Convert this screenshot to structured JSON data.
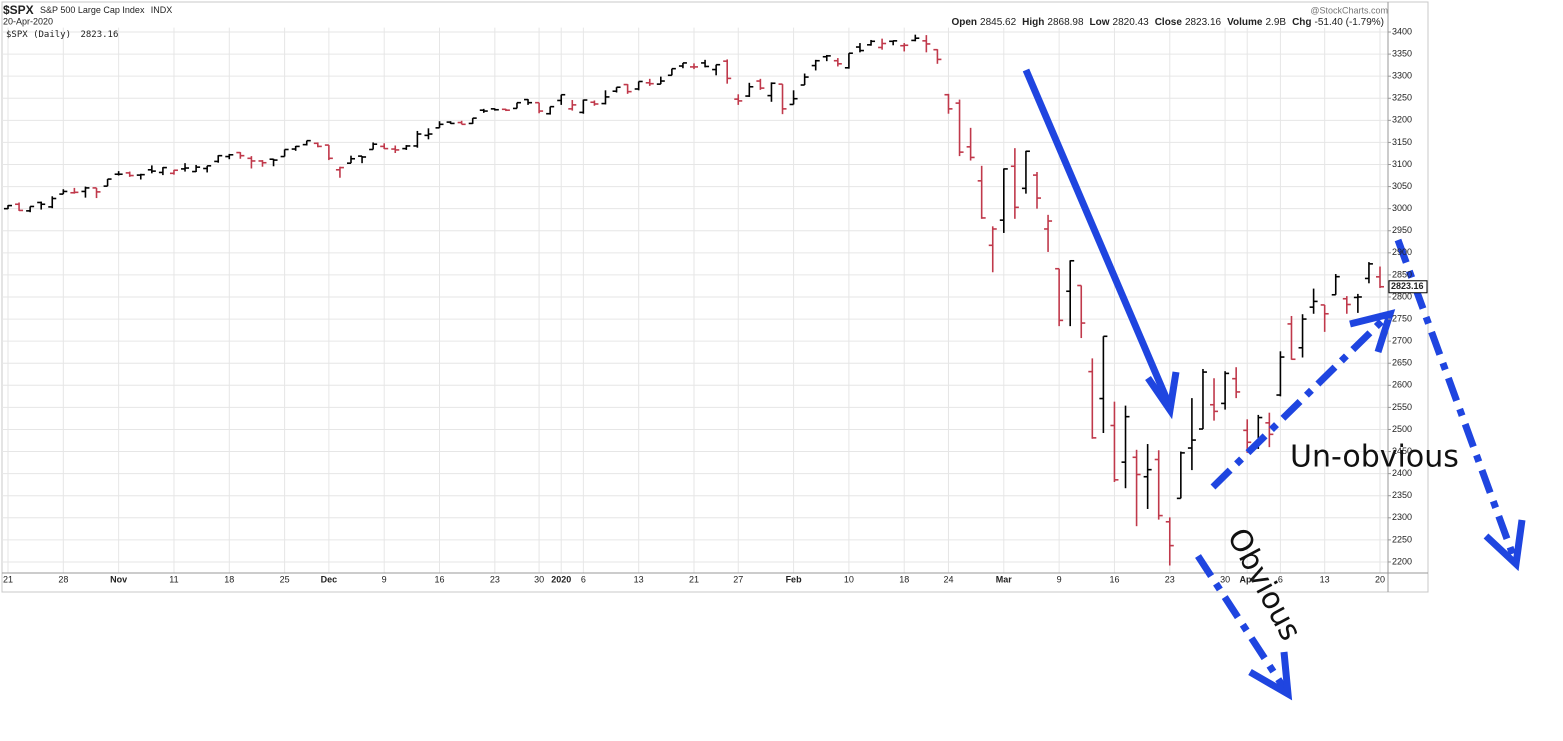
{
  "chart_data": {
    "type": "ohlc",
    "title": "$SPX",
    "subtitle": "S&P 500 Large Cap Index",
    "exchange": "INDX",
    "date": "20-Apr-2020",
    "legend_label": "$SPX (Daily)",
    "source": "@StockCharts.com",
    "volume": {
      "label": "Volume",
      "value": "2.9B"
    },
    "change": {
      "label": "Chg",
      "value": "-51.40 (-1.79%)"
    },
    "annotations": [
      "Obvious",
      "Un-obvious"
    ],
    "up_color": "#000000",
    "down_color": "#c0394b",
    "grid": true,
    "ylim": [
      2175,
      3410
    ],
    "yticks": [
      2200,
      2250,
      2300,
      2350,
      2400,
      2450,
      2500,
      2550,
      2600,
      2650,
      2700,
      2750,
      2800,
      2850,
      2900,
      2950,
      3000,
      3050,
      3100,
      3150,
      3200,
      3250,
      3300,
      3350,
      3400
    ],
    "categories": [
      "21",
      null,
      null,
      null,
      null,
      "28",
      null,
      null,
      null,
      null,
      "Nov",
      null,
      null,
      null,
      null,
      "11",
      null,
      null,
      null,
      null,
      "18",
      null,
      null,
      null,
      null,
      "25",
      null,
      null,
      null,
      "Dec",
      null,
      null,
      null,
      null,
      "9",
      null,
      null,
      null,
      null,
      "16",
      null,
      null,
      null,
      null,
      "23",
      null,
      null,
      null,
      "30",
      null,
      "2020",
      null,
      "6",
      null,
      null,
      null,
      null,
      "13",
      null,
      null,
      null,
      null,
      "21",
      null,
      null,
      null,
      "27",
      null,
      null,
      null,
      null,
      "Feb",
      null,
      null,
      null,
      null,
      "10",
      null,
      null,
      null,
      null,
      "18",
      null,
      null,
      null,
      "24",
      null,
      null,
      null,
      null,
      "Mar",
      null,
      null,
      null,
      null,
      "9",
      null,
      null,
      null,
      null,
      "16",
      null,
      null,
      null,
      null,
      "23",
      null,
      null,
      null,
      null,
      "30",
      null,
      "Apr",
      null,
      null,
      "6",
      null,
      null,
      null,
      "13",
      null,
      null,
      null,
      null,
      "20"
    ],
    "series": [
      {
        "name": "Open",
        "values": [
          3000,
          3010,
          2995,
          3014,
          3004,
          3033,
          3036,
          3039,
          3047,
          3051,
          3078,
          3081,
          3076,
          3088,
          3082,
          3080,
          3090,
          3084,
          3091,
          3107,
          3118,
          3127,
          3114,
          3108,
          3112,
          3118,
          3135,
          3145,
          3148,
          3144,
          3088,
          3103,
          3119,
          3134,
          3141,
          3135,
          3136,
          3142,
          3166,
          3183,
          3196,
          3195,
          3193,
          3223,
          3226,
          3225,
          3227,
          3247,
          3240,
          3215,
          3245,
          3226,
          3218,
          3241,
          3238,
          3266,
          3281,
          3271,
          3285,
          3282,
          3302,
          3323,
          3321,
          3330,
          3315,
          3334,
          3248,
          3255,
          3289,
          3256,
          3282,
          3236,
          3280,
          3324,
          3344,
          3335,
          3319,
          3366,
          3371,
          3365,
          3379,
          3369,
          3381,
          3380,
          3360,
          3258,
          3239,
          3140,
          3063,
          2917,
          2974,
          3096,
          3046,
          3076,
          2954,
          2864,
          2813,
          2826,
          2631,
          2570,
          2509,
          2426,
          2437,
          2393,
          2432,
          2291,
          2344,
          2458,
          2501,
          2556,
          2559,
          2615,
          2498,
          2459,
          2515,
          2578,
          2739,
          2685,
          2777,
          2782,
          2805,
          2796,
          2799,
          2842,
          2845.62
        ]
      },
      {
        "name": "High",
        "values": [
          3008,
          3014,
          3005,
          3016,
          3028,
          3044,
          3047,
          3050,
          3047,
          3067,
          3085,
          3084,
          3079,
          3098,
          3094,
          3088,
          3103,
          3099,
          3097,
          3121,
          3124,
          3128,
          3119,
          3110,
          3113,
          3134,
          3142,
          3154,
          3150,
          3144,
          3095,
          3120,
          3119,
          3150,
          3148,
          3143,
          3144,
          3176,
          3182,
          3198,
          3198,
          3199,
          3205,
          3226,
          3227,
          3226,
          3240,
          3248,
          3240,
          3231,
          3258,
          3246,
          3247,
          3245,
          3268,
          3275,
          3282,
          3288,
          3294,
          3299,
          3317,
          3330,
          3329,
          3337,
          3326,
          3338,
          3259,
          3285,
          3294,
          3286,
          3282,
          3268,
          3306,
          3337,
          3348,
          3341,
          3352,
          3375,
          3382,
          3385,
          3381,
          3375,
          3394,
          3393,
          3361,
          3260,
          3247,
          3183,
          3097,
          2960,
          3091,
          3137,
          3131,
          3083,
          2986,
          2864,
          2883,
          2826,
          2661,
          2711,
          2563,
          2554,
          2454,
          2467,
          2453,
          2301,
          2450,
          2571,
          2637,
          2616,
          2632,
          2641,
          2523,
          2533,
          2538,
          2677,
          2757,
          2761,
          2819,
          2782,
          2852,
          2802,
          2807,
          2879,
          2868.98
        ]
      },
      {
        "name": "Low",
        "values": [
          2999,
          2995,
          2992,
          2998,
          3001,
          3033,
          3034,
          3025,
          3024,
          3051,
          3075,
          3072,
          3066,
          3080,
          3076,
          3077,
          3084,
          3083,
          3082,
          3104,
          3112,
          3113,
          3091,
          3095,
          3096,
          3118,
          3131,
          3143,
          3139,
          3110,
          3070,
          3103,
          3103,
          3134,
          3135,
          3126,
          3133,
          3138,
          3157,
          3183,
          3192,
          3191,
          3192,
          3217,
          3222,
          3221,
          3227,
          3235,
          3216,
          3213,
          3235,
          3222,
          3215,
          3233,
          3236,
          3263,
          3260,
          3268,
          3278,
          3282,
          3302,
          3318,
          3316,
          3320,
          3302,
          3283,
          3235,
          3253,
          3269,
          3242,
          3214,
          3236,
          3280,
          3313,
          3334,
          3322,
          3317,
          3354,
          3369,
          3360,
          3370,
          3356,
          3379,
          3354,
          3328,
          3215,
          3119,
          3109,
          2977,
          2856,
          2945,
          2977,
          3034,
          3000,
          2902,
          2734,
          2734,
          2707,
          2479,
          2492,
          2381,
          2367,
          2281,
          2320,
          2296,
          2192,
          2344,
          2408,
          2501,
          2520,
          2545,
          2571,
          2447,
          2456,
          2460,
          2575,
          2658,
          2663,
          2762,
          2721,
          2805,
          2762,
          2764,
          2831,
          2820.43
        ]
      },
      {
        "name": "Close",
        "values": [
          3007,
          2996,
          3005,
          3010,
          3023,
          3039,
          3037,
          3047,
          3038,
          3067,
          3078,
          3075,
          3077,
          3085,
          3093,
          3087,
          3092,
          3094,
          3097,
          3120,
          3122,
          3120,
          3108,
          3104,
          3110,
          3134,
          3141,
          3154,
          3141,
          3114,
          3093,
          3113,
          3117,
          3146,
          3136,
          3133,
          3142,
          3169,
          3169,
          3191,
          3193,
          3191,
          3205,
          3221,
          3224,
          3223,
          3240,
          3240,
          3221,
          3231,
          3258,
          3235,
          3246,
          3237,
          3253,
          3275,
          3265,
          3288,
          3283,
          3289,
          3317,
          3330,
          3321,
          3322,
          3326,
          3295,
          3244,
          3276,
          3273,
          3284,
          3226,
          3249,
          3298,
          3335,
          3346,
          3328,
          3352,
          3358,
          3379,
          3374,
          3380,
          3370,
          3386,
          3373,
          3338,
          3226,
          3128,
          3116,
          2979,
          2954,
          3090,
          3003,
          3130,
          3024,
          2972,
          2747,
          2882,
          2741,
          2481,
          2711,
          2386,
          2529,
          2398,
          2409,
          2305,
          2237,
          2447,
          2476,
          2630,
          2541,
          2627,
          2585,
          2471,
          2527,
          2489,
          2664,
          2659,
          2750,
          2790,
          2762,
          2846,
          2783,
          2800,
          2875,
          2823.16
        ]
      }
    ]
  }
}
